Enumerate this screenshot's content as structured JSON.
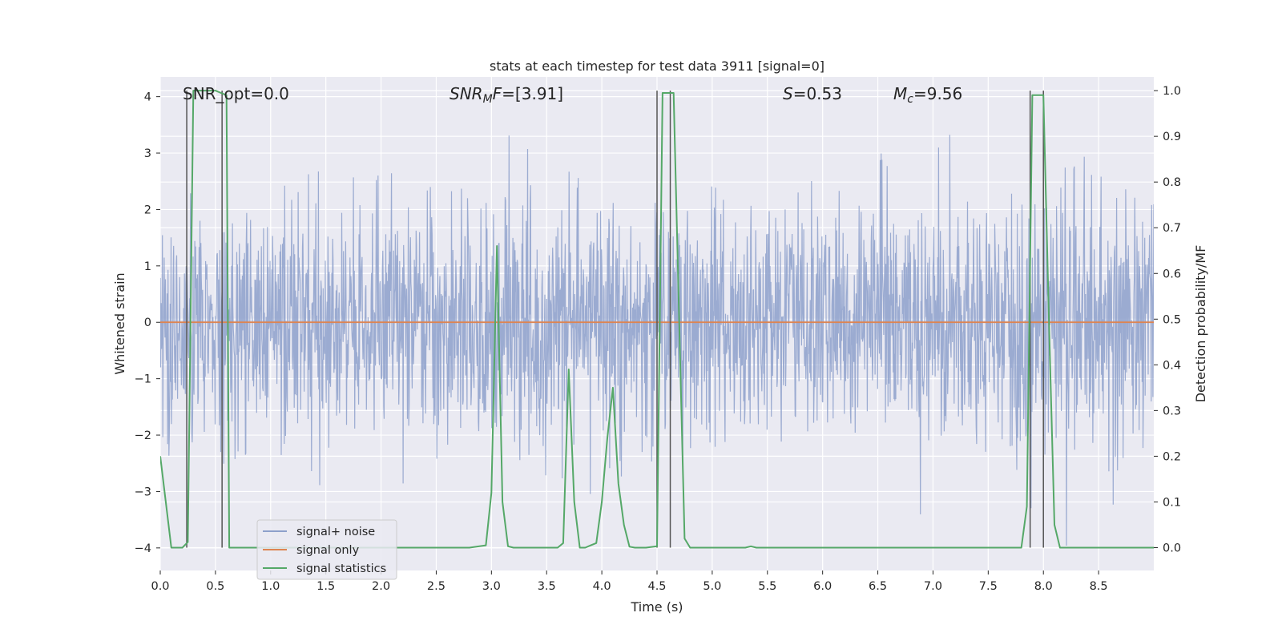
{
  "chart_data": {
    "type": "line",
    "title": "stats at each timestep for test data 3911 [signal=0]",
    "xlabel": "Time (s)",
    "ylabel": "Whitened strain",
    "ylabel_right": "Detection probability/MF",
    "xlim": [
      0.0,
      9.0
    ],
    "ylim": [
      -4.4,
      4.35
    ],
    "ylim_right": [
      -0.05,
      1.03
    ],
    "x_ticks": [
      "0.0",
      "0.5",
      "1.0",
      "1.5",
      "2.0",
      "2.5",
      "3.0",
      "3.5",
      "4.0",
      "4.5",
      "5.0",
      "5.5",
      "6.0",
      "6.5",
      "7.0",
      "7.5",
      "8.0",
      "8.5"
    ],
    "y_ticks": [
      "−4",
      "−3",
      "−2",
      "−1",
      "0",
      "1",
      "2",
      "3",
      "4"
    ],
    "y_ticks_right": [
      "0.0",
      "0.1",
      "0.2",
      "0.3",
      "0.4",
      "0.5",
      "0.6",
      "0.7",
      "0.8",
      "0.9",
      "1.0"
    ],
    "grid": true,
    "legend_position": "lower-left",
    "annotations": {
      "snr_opt": "SNR_opt=0.0",
      "snr_mf_main": "SNR",
      "snr_mf_sub": "M",
      "snr_mf_f": "F",
      "snr_mf_value": "=[3.91]",
      "s_label": "S",
      "s_value": "=0.53",
      "mc_main": "M",
      "mc_sub": "c",
      "mc_value": "=9.56"
    },
    "series": [
      {
        "name": "signal+ noise",
        "color": "#8da0cb",
        "axis": "left",
        "description": "whitened noise time series, approximately Gaussian with std ~1, peaks up to about ±4"
      },
      {
        "name": "signal only",
        "color": "#dd8452",
        "axis": "left",
        "x": [
          0.0,
          9.0
        ],
        "y": [
          0.0,
          0.0
        ]
      },
      {
        "name": "signal statistics",
        "color": "#55a868",
        "axis": "right",
        "x": [
          0.0,
          0.05,
          0.1,
          0.2,
          0.25,
          0.3,
          0.35,
          0.4,
          0.45,
          0.5,
          0.55,
          0.6,
          0.625,
          0.7,
          0.8,
          1.0,
          1.5,
          2.0,
          2.5,
          2.8,
          2.95,
          3.0,
          3.05,
          3.1,
          3.15,
          3.2,
          3.3,
          3.4,
          3.5,
          3.6,
          3.65,
          3.7,
          3.75,
          3.8,
          3.85,
          3.9,
          3.95,
          4.0,
          4.05,
          4.1,
          4.15,
          4.2,
          4.25,
          4.3,
          4.35,
          4.4,
          4.5,
          4.55,
          4.6,
          4.65,
          4.7,
          4.75,
          4.8,
          4.9,
          5.0,
          5.2,
          5.3,
          5.35,
          5.4,
          5.5,
          6.0,
          6.5,
          7.0,
          7.5,
          7.8,
          7.85,
          7.9,
          7.95,
          8.0,
          8.05,
          8.1,
          8.15,
          8.2,
          8.3,
          8.5,
          8.8,
          9.0
        ],
        "y": [
          0.2,
          0.1,
          0.0,
          0.0,
          0.012,
          1.0,
          1.0,
          1.0,
          1.0,
          1.0,
          0.995,
          0.99,
          0.0,
          0.0,
          0.0,
          0.0,
          0.0,
          0.0,
          0.0,
          0.0,
          0.005,
          0.12,
          0.66,
          0.1,
          0.003,
          0.0,
          0.0,
          0.0,
          0.0,
          0.0,
          0.01,
          0.39,
          0.1,
          0.0,
          0.0,
          0.005,
          0.01,
          0.1,
          0.24,
          0.35,
          0.14,
          0.05,
          0.002,
          0.0,
          0.0,
          0.0,
          0.003,
          0.995,
          0.995,
          0.995,
          0.5,
          0.02,
          0.0,
          0.0,
          0.0,
          0.0,
          0.0,
          0.003,
          0.0,
          0.0,
          0.0,
          0.0,
          0.0,
          0.0,
          0.0,
          0.09,
          0.99,
          0.99,
          0.99,
          0.5,
          0.05,
          0.0,
          0.0,
          0.0,
          0.0,
          0.0,
          0.0
        ]
      }
    ],
    "marker_lines": [
      0.24,
      0.56,
      4.5,
      4.62,
      7.88,
      8.0
    ]
  }
}
